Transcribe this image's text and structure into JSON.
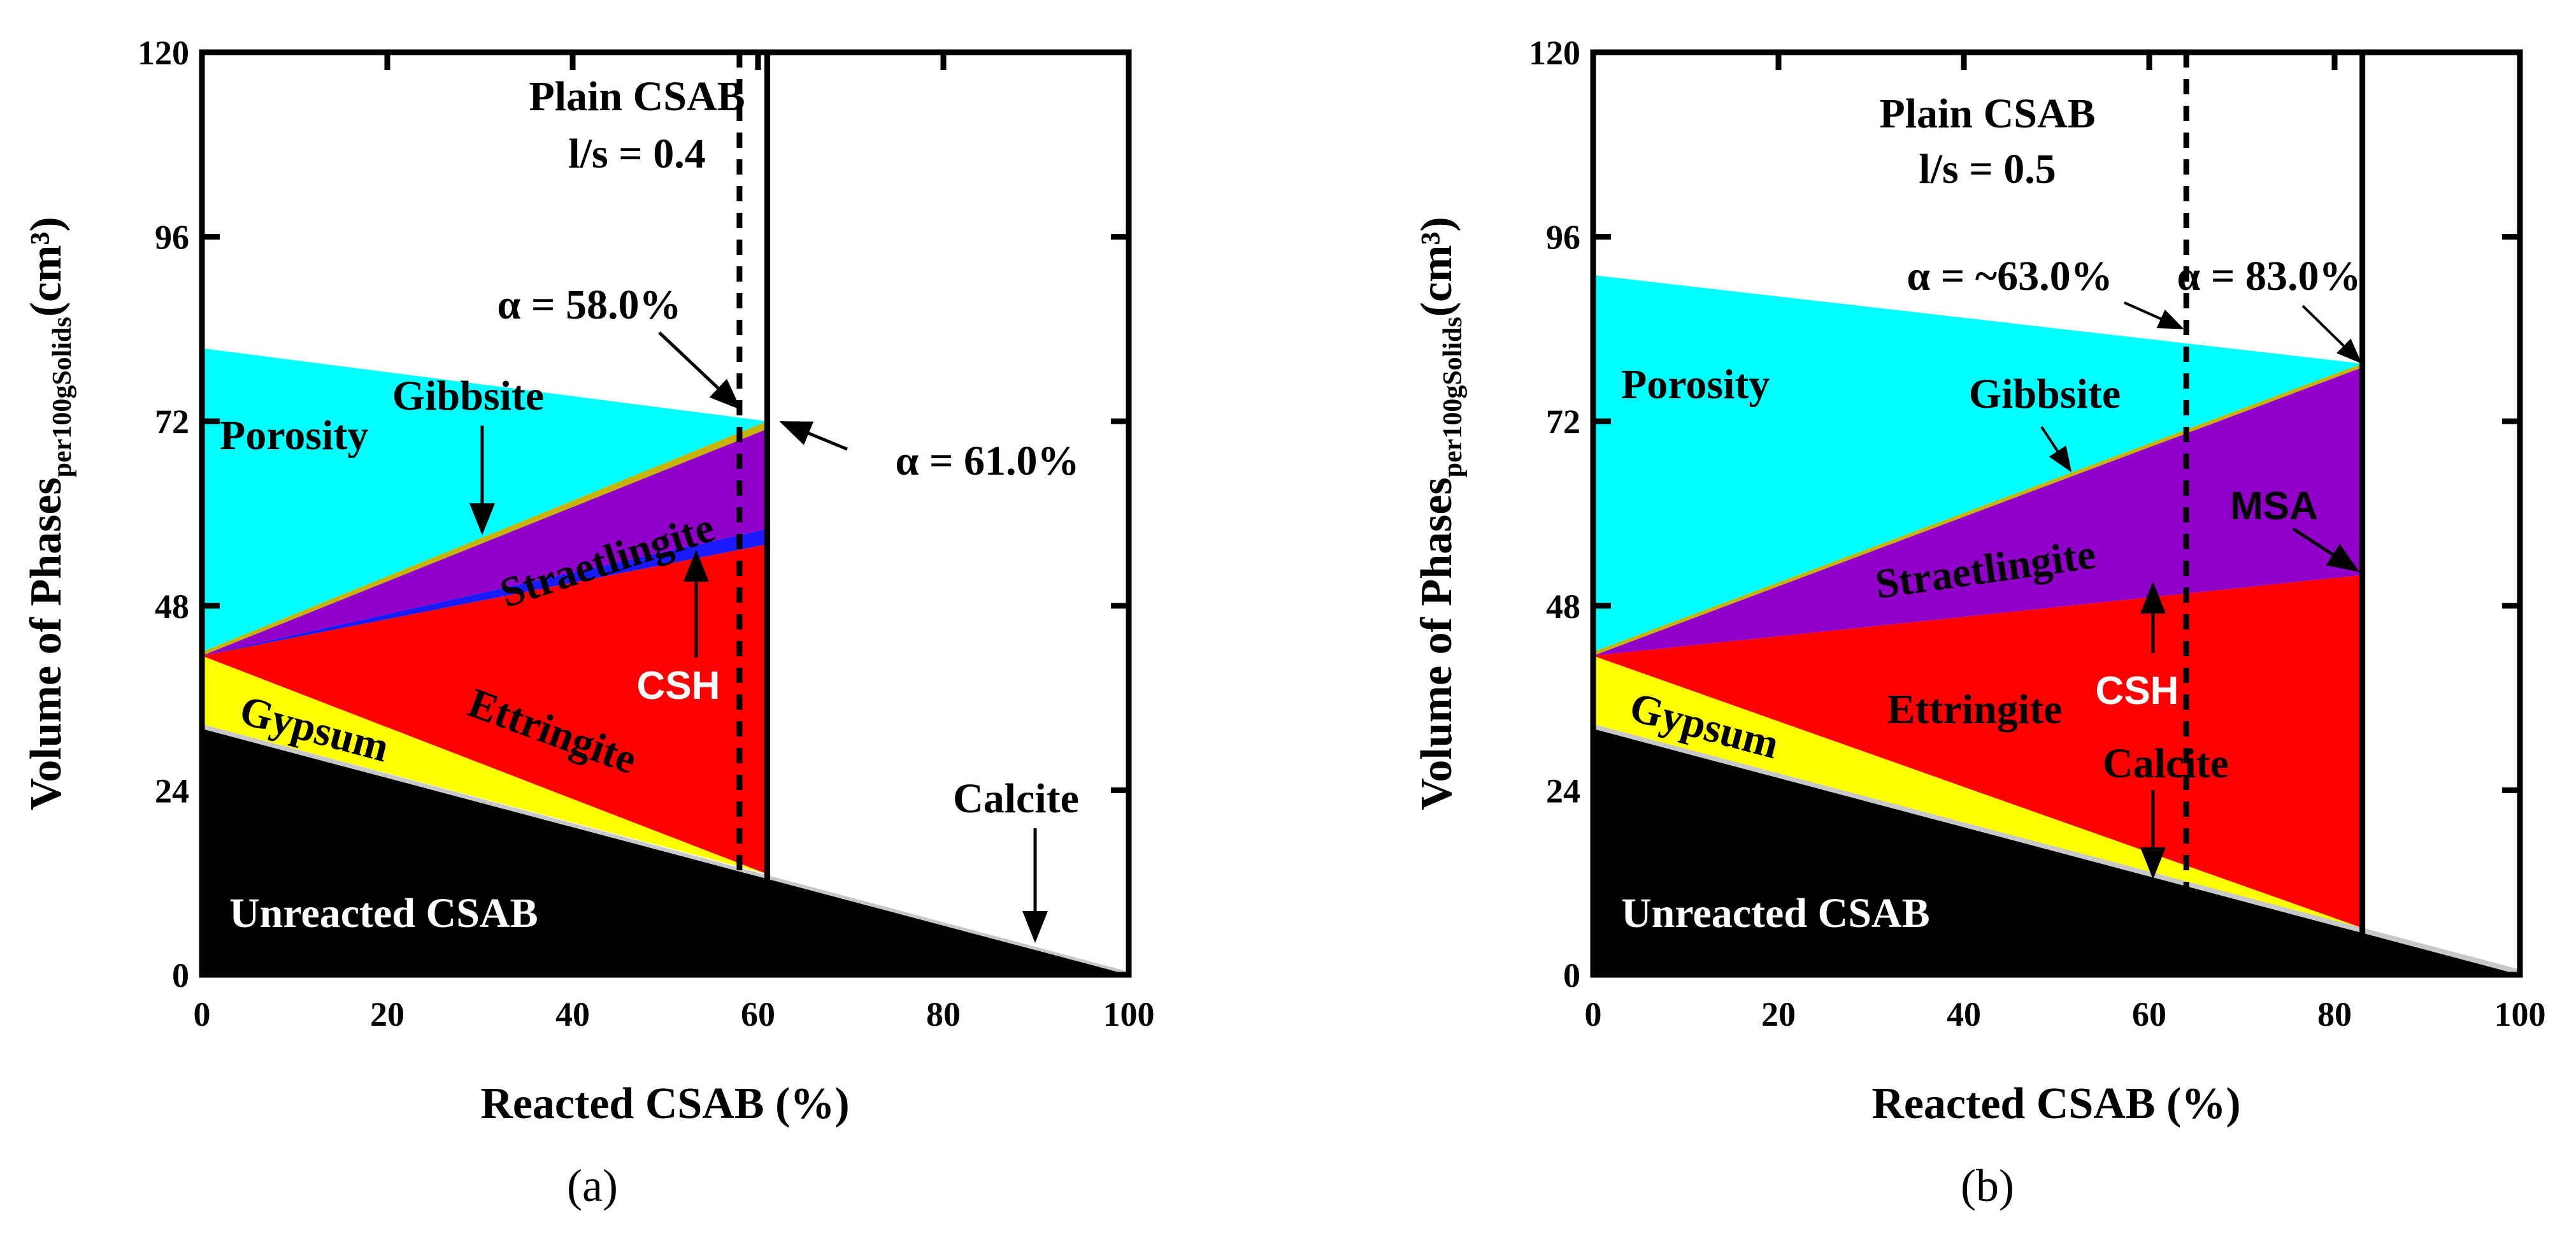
{
  "chart_data": [
    {
      "type": "area",
      "panel": "(a)",
      "caption": "(a)",
      "title_lines": [
        "Plain CSAB",
        "l/s = 0.4"
      ],
      "xlabel": "Reacted CSAB (%)",
      "ylabel_main": "Volume of Phases",
      "ylabel_sub": "per100gSolids",
      "ylabel_unit": "(cm³)",
      "xlim": [
        0,
        100
      ],
      "ylim": [
        0,
        120
      ],
      "xticks": [
        "0",
        "20",
        "40",
        "60",
        "80",
        "100"
      ],
      "yticks": [
        "0",
        "24",
        "48",
        "72",
        "96",
        "120"
      ],
      "x_end": 61,
      "dashed_x": 58,
      "solid_x": 61,
      "layers": [
        {
          "name": "Unreacted CSAB",
          "color": "#000000",
          "lower": [
            [
              0,
              0
            ],
            [
              100,
              0
            ]
          ],
          "upper": [
            [
              0,
              32
            ],
            [
              100,
              0
            ]
          ]
        },
        {
          "name": "Calcite",
          "color": "#c8c8c8",
          "lower": [
            [
              0,
              32
            ],
            [
              100,
              0
            ]
          ],
          "upper": [
            [
              0,
              32.6
            ],
            [
              100,
              0.4
            ]
          ]
        },
        {
          "name": "Gypsum",
          "color": "#ffff00",
          "lower": [
            [
              0,
              32.6
            ],
            [
              61,
              13.1
            ]
          ],
          "upper": [
            [
              0,
              41.5
            ],
            [
              61,
              13.1
            ]
          ]
        },
        {
          "name": "Ettringite",
          "color": "#ff0000",
          "lower": [
            [
              0,
              41.5
            ],
            [
              61,
              13.1
            ]
          ],
          "upper": [
            [
              0,
              41.5
            ],
            [
              61,
              56
            ]
          ]
        },
        {
          "name": "CSH",
          "color": "#1a1aff",
          "lower": [
            [
              0,
              41.5
            ],
            [
              61,
              56
            ]
          ],
          "upper": [
            [
              0,
              41.5
            ],
            [
              61,
              58
            ]
          ]
        },
        {
          "name": "Straetlingite",
          "color": "#9000c8",
          "lower": [
            [
              0,
              41.5
            ],
            [
              61,
              58
            ]
          ],
          "upper": [
            [
              0,
              41.5
            ],
            [
              61,
              71
            ]
          ]
        },
        {
          "name": "Gibbsite",
          "color": "#c8b400",
          "lower": [
            [
              0,
              41.5
            ],
            [
              61,
              71
            ]
          ],
          "upper": [
            [
              0,
              42
            ],
            [
              61,
              72
            ]
          ]
        },
        {
          "name": "Porosity",
          "color": "#00ffff",
          "lower": [
            [
              0,
              42
            ],
            [
              61,
              72
            ]
          ],
          "upper": [
            [
              0,
              81.5
            ],
            [
              61,
              72
            ]
          ]
        }
      ],
      "annotations": [
        {
          "text": "Porosity",
          "color": "#000000"
        },
        {
          "text": "Gibbsite",
          "color": "#000000"
        },
        {
          "text": "Straetlingite",
          "color": "#000000"
        },
        {
          "text": "CSH",
          "color": "#ffffff"
        },
        {
          "text": "Ettringite",
          "color": "#000000"
        },
        {
          "text": "Gypsum",
          "color": "#000000"
        },
        {
          "text": "Unreacted CSAB",
          "color": "#ffffff"
        },
        {
          "text": "Calcite",
          "color": "#000000"
        },
        {
          "text": "α = 58.0%",
          "color": "#000000"
        },
        {
          "text": "α = 61.0%",
          "color": "#000000"
        }
      ]
    },
    {
      "type": "area",
      "panel": "(b)",
      "caption": "(b)",
      "title_lines": [
        "Plain CSAB",
        "l/s = 0.5"
      ],
      "xlabel": "Reacted CSAB (%)",
      "ylabel_main": "Volume of Phases",
      "ylabel_sub": "per100gSolids",
      "ylabel_unit": "(cm³)",
      "xlim": [
        0,
        100
      ],
      "ylim": [
        0,
        120
      ],
      "xticks": [
        "0",
        "20",
        "40",
        "60",
        "80",
        "100"
      ],
      "yticks": [
        "0",
        "24",
        "48",
        "72",
        "96",
        "120"
      ],
      "x_end": 83,
      "dashed_x": 64,
      "solid_x": 83,
      "layers": [
        {
          "name": "Unreacted CSAB",
          "color": "#000000",
          "lower": [
            [
              0,
              0
            ],
            [
              100,
              0
            ]
          ],
          "upper": [
            [
              0,
              32
            ],
            [
              100,
              0
            ]
          ]
        },
        {
          "name": "Calcite",
          "color": "#c8c8c8",
          "lower": [
            [
              0,
              32
            ],
            [
              100,
              0
            ]
          ],
          "upper": [
            [
              0,
              32.6
            ],
            [
              100,
              0.7
            ]
          ]
        },
        {
          "name": "Gypsum",
          "color": "#ffff00",
          "lower": [
            [
              0,
              32.6
            ],
            [
              83,
              6.1
            ]
          ],
          "upper": [
            [
              0,
              41.5
            ],
            [
              83,
              6.1
            ]
          ]
        },
        {
          "name": "Ettringite",
          "color": "#ff0000",
          "lower": [
            [
              0,
              41.5
            ],
            [
              83,
              6.1
            ]
          ],
          "upper": [
            [
              0,
              41.5
            ],
            [
              83,
              52
            ]
          ]
        },
        {
          "name": "MSA",
          "color": "#9000c8",
          "lower": [
            [
              0,
              41.5
            ],
            [
              83,
              52
            ]
          ],
          "upper": [
            [
              0,
              41.5
            ],
            [
              83,
              52
            ]
          ]
        },
        {
          "name": "Straetlingite",
          "color": "#9000c8",
          "lower": [
            [
              0,
              41.5
            ],
            [
              83,
              52
            ]
          ],
          "upper": [
            [
              0,
              41.5
            ],
            [
              83,
              79
            ]
          ]
        },
        {
          "name": "Gibbsite",
          "color": "#c8b400",
          "lower": [
            [
              0,
              41.5
            ],
            [
              83,
              79
            ]
          ],
          "upper": [
            [
              0,
              42
            ],
            [
              83,
              79.5
            ]
          ]
        },
        {
          "name": "Porosity",
          "color": "#00ffff",
          "lower": [
            [
              0,
              42
            ],
            [
              83,
              79.5
            ]
          ],
          "upper": [
            [
              0,
              91
            ],
            [
              83,
              79.5
            ]
          ]
        }
      ],
      "annotations": [
        {
          "text": "Porosity",
          "color": "#000000"
        },
        {
          "text": "Gibbsite",
          "color": "#000000"
        },
        {
          "text": "MSA",
          "color": "#000000"
        },
        {
          "text": "Straetlingite",
          "color": "#000000"
        },
        {
          "text": "CSH",
          "color": "#ffffff"
        },
        {
          "text": "Ettringite",
          "color": "#000000"
        },
        {
          "text": "Calcite",
          "color": "#000000"
        },
        {
          "text": "Gypsum",
          "color": "#000000"
        },
        {
          "text": "Unreacted CSAB",
          "color": "#ffffff"
        },
        {
          "text": "α = ~63.0%",
          "color": "#000000"
        },
        {
          "text": "α = 83.0%",
          "color": "#000000"
        }
      ]
    }
  ]
}
